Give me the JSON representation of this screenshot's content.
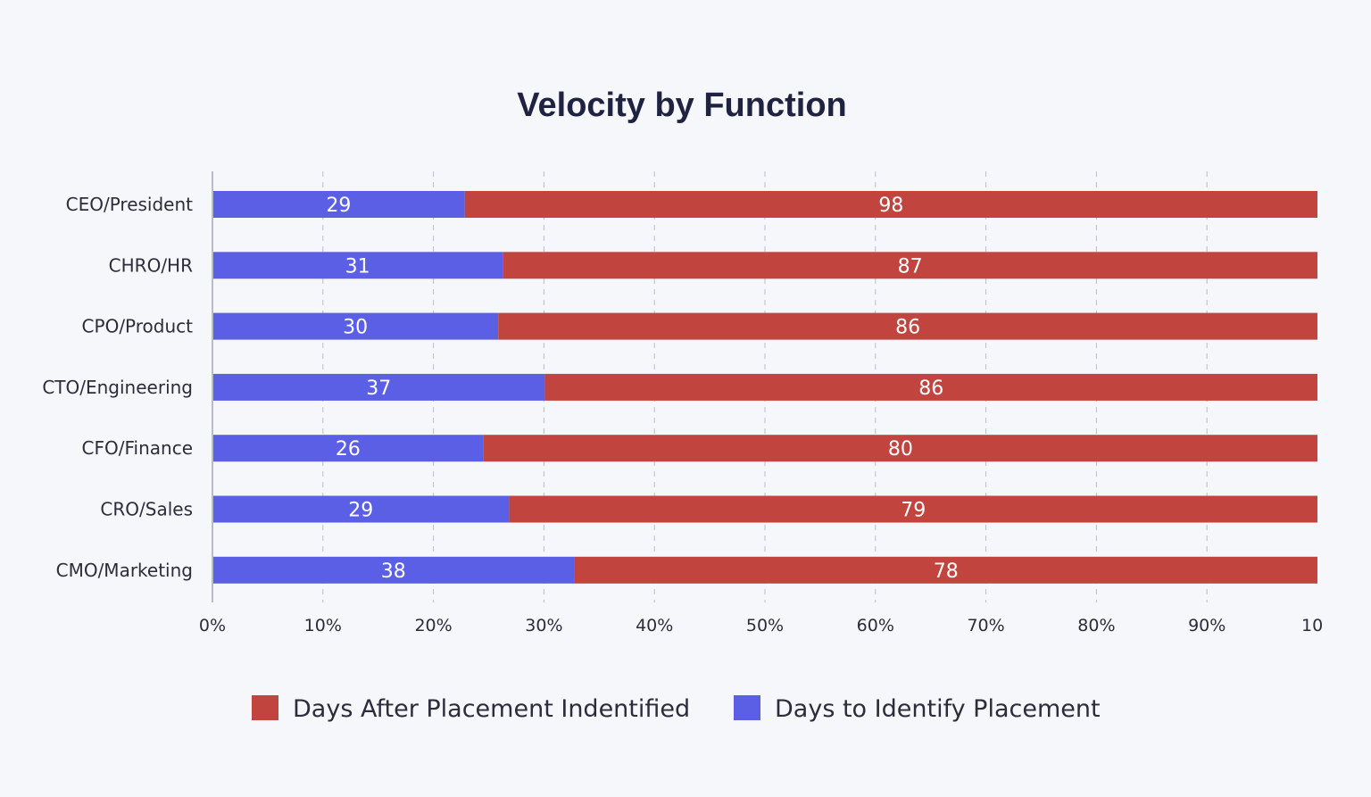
{
  "chart_data": {
    "type": "bar",
    "orientation": "horizontal",
    "stacked": "percent",
    "title": "Velocity by Function",
    "xlabel": "",
    "ylabel": "",
    "categories": [
      "CEO/President",
      "CHRO/HR",
      "CPO/Product",
      "CTO/Engineering",
      "CFO/Finance",
      "CRO/Sales",
      "CMO/Marketing"
    ],
    "series": [
      {
        "name": "Days to Identify Placement",
        "color": "#5a5fe6",
        "values": [
          29,
          31,
          30,
          37,
          26,
          29,
          38
        ]
      },
      {
        "name": "Days After Placement Indentified",
        "color": "#c1443f",
        "values": [
          98,
          87,
          86,
          86,
          80,
          79,
          78
        ]
      }
    ],
    "x_ticks": [
      "0%",
      "10%",
      "20%",
      "30%",
      "40%",
      "50%",
      "60%",
      "70%",
      "80%",
      "90%",
      "10"
    ],
    "xlim": [
      0,
      100
    ],
    "grid": true,
    "legend": {
      "position": "bottom",
      "items": [
        {
          "label": "Days After Placement Indentified",
          "color": "#c1443f"
        },
        {
          "label": "Days to Identify Placement",
          "color": "#5a5fe6"
        }
      ]
    }
  }
}
